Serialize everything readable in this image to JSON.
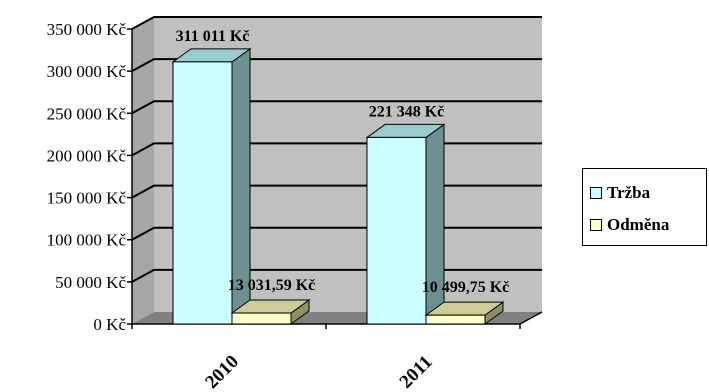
{
  "chart_data": {
    "type": "bar",
    "categories": [
      "2010",
      "2011"
    ],
    "series": [
      {
        "name": "Tržba",
        "values": [
          311011,
          221348
        ],
        "labels": [
          "311 011  Kč",
          "221 348  Kč"
        ],
        "color": "#ccffff"
      },
      {
        "name": "Odměna",
        "values": [
          13031.59,
          10499.75
        ],
        "labels": [
          "13 031,59  Kč",
          "10 499,75  Kč"
        ],
        "color": "#ffffcc"
      }
    ],
    "y_ticks": [
      0,
      50000,
      100000,
      150000,
      200000,
      250000,
      300000,
      350000
    ],
    "y_tick_labels": [
      "0 Kč",
      "50 000 Kč",
      "100 000 Kč",
      "150 000 Kč",
      "200 000 Kč",
      "250 000 Kč",
      "300 000 Kč",
      "350 000 Kč"
    ],
    "ylim": [
      0,
      350000
    ],
    "grid": true,
    "legend_position": "right",
    "style": "3d"
  }
}
